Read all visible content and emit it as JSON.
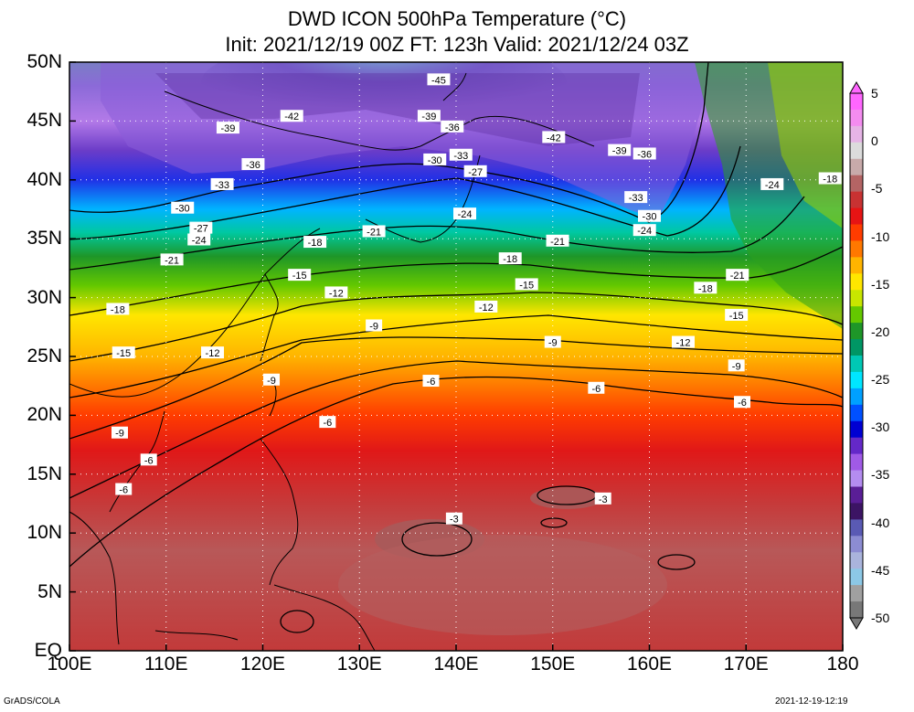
{
  "title_line1": "DWD ICON 500hPa Temperature (°C)",
  "title_line2": "Init: 2021/12/19 00Z  FT: 123h  Valid: 2021/12/24 03Z",
  "footer_left": "GrADS/COLA",
  "footer_right": "2021-12-19-12:19",
  "map": {
    "lon_range": [
      100,
      180
    ],
    "lat_range": [
      0,
      50
    ],
    "grid": "dotted white",
    "x_ticks": [
      "100E",
      "110E",
      "120E",
      "130E",
      "140E",
      "150E",
      "160E",
      "170E",
      "180"
    ],
    "y_ticks": [
      "EQ",
      "5N",
      "10N",
      "15N",
      "20N",
      "25N",
      "30N",
      "35N",
      "40N",
      "45N",
      "50N"
    ]
  },
  "colorbar": {
    "labels": [
      "5",
      "0",
      "-5",
      "-10",
      "-15",
      "-20",
      "-25",
      "-30",
      "-35",
      "-40",
      "-45",
      "-50"
    ],
    "colors": [
      "#ff66ff",
      "#f48cf0",
      "#e6b4e6",
      "#dcdcdc",
      "#c8aaaa",
      "#b46464",
      "#c83232",
      "#e61414",
      "#ff3c00",
      "#ff7800",
      "#ffb400",
      "#ffe600",
      "#c8e600",
      "#64c800",
      "#1e9628",
      "#009664",
      "#00c8b4",
      "#00e6ff",
      "#00a0ff",
      "#0050ff",
      "#0000d2",
      "#6428c8",
      "#a05ae6",
      "#b48cf0",
      "#5a1e96",
      "#3c1464",
      "#5a5ab4",
      "#8c8cd2",
      "#aab4dc",
      "#8cc8e6",
      "#a0a0a0",
      "#787878"
    ]
  },
  "isotherm_labels": [
    {
      "text": "-45",
      "lon": 138.2,
      "lat": 48.5
    },
    {
      "text": "-42",
      "lon": 123.0,
      "lat": 45.4
    },
    {
      "text": "-39",
      "lon": 116.4,
      "lat": 44.4
    },
    {
      "text": "-39",
      "lon": 137.2,
      "lat": 45.4
    },
    {
      "text": "-36",
      "lon": 139.6,
      "lat": 44.5
    },
    {
      "text": "-42",
      "lon": 150.1,
      "lat": 43.6
    },
    {
      "text": "-39",
      "lon": 156.9,
      "lat": 42.5
    },
    {
      "text": "-36",
      "lon": 159.5,
      "lat": 42.2
    },
    {
      "text": "-36",
      "lon": 119.0,
      "lat": 41.3
    },
    {
      "text": "-30",
      "lon": 137.8,
      "lat": 41.7
    },
    {
      "text": "-33",
      "lon": 140.5,
      "lat": 42.1
    },
    {
      "text": "-27",
      "lon": 142.0,
      "lat": 40.7
    },
    {
      "text": "-33",
      "lon": 115.8,
      "lat": 39.6
    },
    {
      "text": "-33",
      "lon": 158.6,
      "lat": 38.5
    },
    {
      "text": "-30",
      "lon": 111.7,
      "lat": 37.6
    },
    {
      "text": "-24",
      "lon": 172.7,
      "lat": 39.6
    },
    {
      "text": "-18",
      "lon": 178.7,
      "lat": 40.1
    },
    {
      "text": "-27",
      "lon": 113.6,
      "lat": 35.9
    },
    {
      "text": "-24",
      "lon": 140.9,
      "lat": 37.1
    },
    {
      "text": "-30",
      "lon": 160.0,
      "lat": 36.9
    },
    {
      "text": "-24",
      "lon": 113.4,
      "lat": 34.9
    },
    {
      "text": "-21",
      "lon": 131.5,
      "lat": 35.6
    },
    {
      "text": "-24",
      "lon": 159.5,
      "lat": 35.7
    },
    {
      "text": "-18",
      "lon": 125.4,
      "lat": 34.7
    },
    {
      "text": "-21",
      "lon": 150.5,
      "lat": 34.8
    },
    {
      "text": "-21",
      "lon": 110.6,
      "lat": 33.2
    },
    {
      "text": "-18",
      "lon": 145.6,
      "lat": 33.3
    },
    {
      "text": "-15",
      "lon": 123.8,
      "lat": 31.9
    },
    {
      "text": "-21",
      "lon": 169.1,
      "lat": 31.9
    },
    {
      "text": "-15",
      "lon": 147.3,
      "lat": 31.1
    },
    {
      "text": "-18",
      "lon": 165.8,
      "lat": 30.8
    },
    {
      "text": "-12",
      "lon": 127.6,
      "lat": 30.4
    },
    {
      "text": "-12",
      "lon": 143.1,
      "lat": 29.2
    },
    {
      "text": "-18",
      "lon": 105.0,
      "lat": 29.0
    },
    {
      "text": "-15",
      "lon": 169.0,
      "lat": 28.5
    },
    {
      "text": "-9",
      "lon": 131.5,
      "lat": 27.6
    },
    {
      "text": "-9",
      "lon": 150.0,
      "lat": 26.2
    },
    {
      "text": "-12",
      "lon": 163.5,
      "lat": 26.2
    },
    {
      "text": "-15",
      "lon": 105.6,
      "lat": 25.3
    },
    {
      "text": "-12",
      "lon": 114.8,
      "lat": 25.3
    },
    {
      "text": "-9",
      "lon": 169.0,
      "lat": 24.2
    },
    {
      "text": "-9",
      "lon": 120.9,
      "lat": 23.0
    },
    {
      "text": "-6",
      "lon": 137.4,
      "lat": 22.9
    },
    {
      "text": "-6",
      "lon": 154.5,
      "lat": 22.3
    },
    {
      "text": "-6",
      "lon": 169.6,
      "lat": 21.1
    },
    {
      "text": "-6",
      "lon": 126.7,
      "lat": 19.4
    },
    {
      "text": "-9",
      "lon": 105.2,
      "lat": 18.5
    },
    {
      "text": "-6",
      "lon": 108.2,
      "lat": 16.2
    },
    {
      "text": "-6",
      "lon": 105.6,
      "lat": 13.7
    },
    {
      "text": "-3",
      "lon": 155.2,
      "lat": 12.9
    },
    {
      "text": "-3",
      "lon": 139.8,
      "lat": 11.2
    }
  ]
}
